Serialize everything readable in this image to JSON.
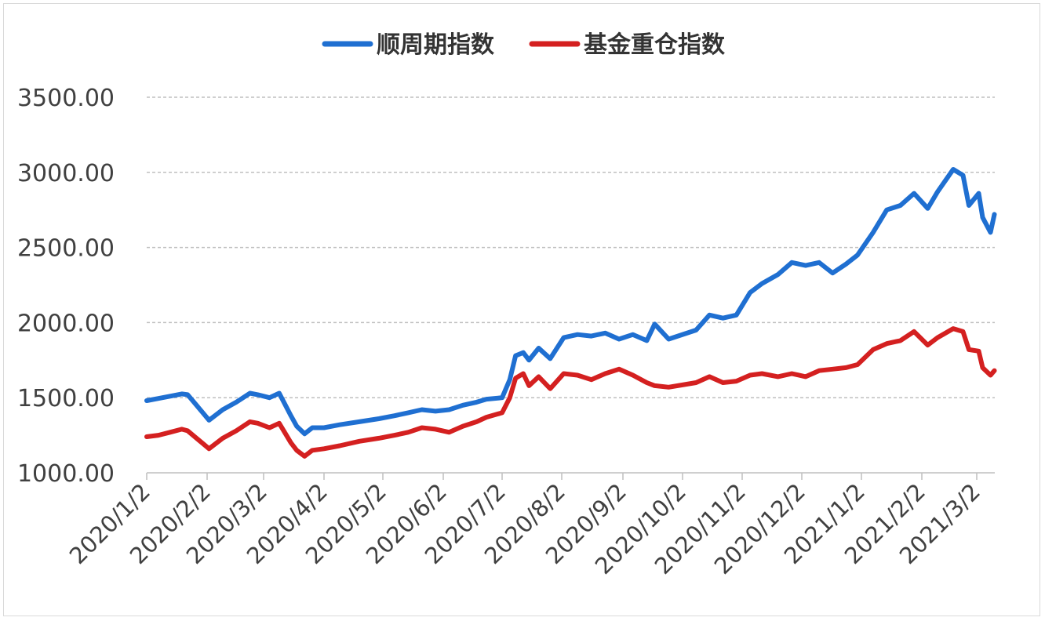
{
  "chart_data": {
    "type": "line",
    "title": "",
    "xlabel": "",
    "ylabel": "",
    "ylim": [
      1000,
      3500
    ],
    "yticks": [
      "1000.00",
      "1500.00",
      "2000.00",
      "2500.00",
      "3000.00",
      "3500.00"
    ],
    "xticks": [
      "2020/1/2",
      "2020/2/2",
      "2020/3/2",
      "2020/4/2",
      "2020/5/2",
      "2020/6/2",
      "2020/7/2",
      "2020/8/2",
      "2020/9/2",
      "2020/10/2",
      "2020/11/2",
      "2020/12/2",
      "2021/1/2",
      "2021/2/2",
      "2021/3/2"
    ],
    "grid": true,
    "legend_position": "top",
    "series": [
      {
        "name": "顺周期指数",
        "color": "#1f6fd1",
        "x": [
          "2020/1/2",
          "2020/1/8",
          "2020/1/14",
          "2020/1/20",
          "2020/1/23",
          "2020/2/3",
          "2020/2/10",
          "2020/2/17",
          "2020/2/24",
          "2020/2/28",
          "2020/3/5",
          "2020/3/10",
          "2020/3/16",
          "2020/3/19",
          "2020/3/23",
          "2020/3/27",
          "2020/4/2",
          "2020/4/10",
          "2020/4/20",
          "2020/4/30",
          "2020/5/8",
          "2020/5/15",
          "2020/5/22",
          "2020/5/29",
          "2020/6/5",
          "2020/6/12",
          "2020/6/19",
          "2020/6/24",
          "2020/7/2",
          "2020/7/6",
          "2020/7/9",
          "2020/7/13",
          "2020/7/16",
          "2020/7/21",
          "2020/7/27",
          "2020/8/3",
          "2020/8/10",
          "2020/8/17",
          "2020/8/24",
          "2020/8/31",
          "2020/9/7",
          "2020/9/14",
          "2020/9/18",
          "2020/9/25",
          "2020/10/9",
          "2020/10/16",
          "2020/10/23",
          "2020/10/30",
          "2020/11/6",
          "2020/11/12",
          "2020/11/20",
          "2020/11/27",
          "2020/12/4",
          "2020/12/11",
          "2020/12/18",
          "2020/12/25",
          "2020/12/31",
          "2021/1/8",
          "2021/1/15",
          "2021/1/22",
          "2021/1/29",
          "2021/2/5",
          "2021/2/10",
          "2021/2/18",
          "2021/2/23",
          "2021/2/26",
          "2021/3/3",
          "2021/3/5",
          "2021/3/9",
          "2021/3/11"
        ],
        "values": [
          1480,
          1495,
          1510,
          1525,
          1520,
          1350,
          1420,
          1470,
          1530,
          1520,
          1500,
          1530,
          1380,
          1310,
          1260,
          1300,
          1300,
          1320,
          1340,
          1360,
          1380,
          1400,
          1420,
          1410,
          1420,
          1450,
          1470,
          1490,
          1500,
          1620,
          1780,
          1800,
          1750,
          1830,
          1760,
          1900,
          1920,
          1910,
          1930,
          1890,
          1920,
          1880,
          1990,
          1890,
          1950,
          2050,
          2030,
          2050,
          2200,
          2260,
          2320,
          2400,
          2380,
          2400,
          2330,
          2390,
          2450,
          2600,
          2750,
          2780,
          2860,
          2760,
          2870,
          3020,
          2980,
          2780,
          2860,
          2700,
          2600,
          2720
        ]
      },
      {
        "name": "基金重仓指数",
        "color": "#d42020",
        "x": [
          "2020/1/2",
          "2020/1/8",
          "2020/1/14",
          "2020/1/20",
          "2020/1/23",
          "2020/2/3",
          "2020/2/10",
          "2020/2/17",
          "2020/2/24",
          "2020/2/28",
          "2020/3/5",
          "2020/3/10",
          "2020/3/16",
          "2020/3/19",
          "2020/3/23",
          "2020/3/27",
          "2020/4/2",
          "2020/4/10",
          "2020/4/20",
          "2020/4/30",
          "2020/5/8",
          "2020/5/15",
          "2020/5/22",
          "2020/5/29",
          "2020/6/5",
          "2020/6/12",
          "2020/6/19",
          "2020/6/24",
          "2020/7/2",
          "2020/7/6",
          "2020/7/9",
          "2020/7/13",
          "2020/7/16",
          "2020/7/21",
          "2020/7/27",
          "2020/8/3",
          "2020/8/10",
          "2020/8/17",
          "2020/8/24",
          "2020/8/31",
          "2020/9/7",
          "2020/9/14",
          "2020/9/18",
          "2020/9/25",
          "2020/10/9",
          "2020/10/16",
          "2020/10/23",
          "2020/10/30",
          "2020/11/6",
          "2020/11/12",
          "2020/11/20",
          "2020/11/27",
          "2020/12/4",
          "2020/12/11",
          "2020/12/18",
          "2020/12/25",
          "2020/12/31",
          "2021/1/8",
          "2021/1/15",
          "2021/1/22",
          "2021/1/29",
          "2021/2/5",
          "2021/2/10",
          "2021/2/18",
          "2021/2/23",
          "2021/2/26",
          "2021/3/3",
          "2021/3/5",
          "2021/3/9",
          "2021/3/11"
        ],
        "values": [
          1240,
          1250,
          1270,
          1290,
          1280,
          1160,
          1230,
          1280,
          1340,
          1330,
          1300,
          1330,
          1200,
          1150,
          1110,
          1150,
          1160,
          1180,
          1210,
          1230,
          1250,
          1270,
          1300,
          1290,
          1270,
          1310,
          1340,
          1370,
          1400,
          1500,
          1630,
          1660,
          1580,
          1640,
          1560,
          1660,
          1650,
          1620,
          1660,
          1690,
          1650,
          1600,
          1580,
          1570,
          1600,
          1640,
          1600,
          1610,
          1650,
          1660,
          1640,
          1660,
          1640,
          1680,
          1690,
          1700,
          1720,
          1820,
          1860,
          1880,
          1940,
          1850,
          1900,
          1960,
          1940,
          1820,
          1810,
          1700,
          1650,
          1680
        ]
      }
    ]
  }
}
